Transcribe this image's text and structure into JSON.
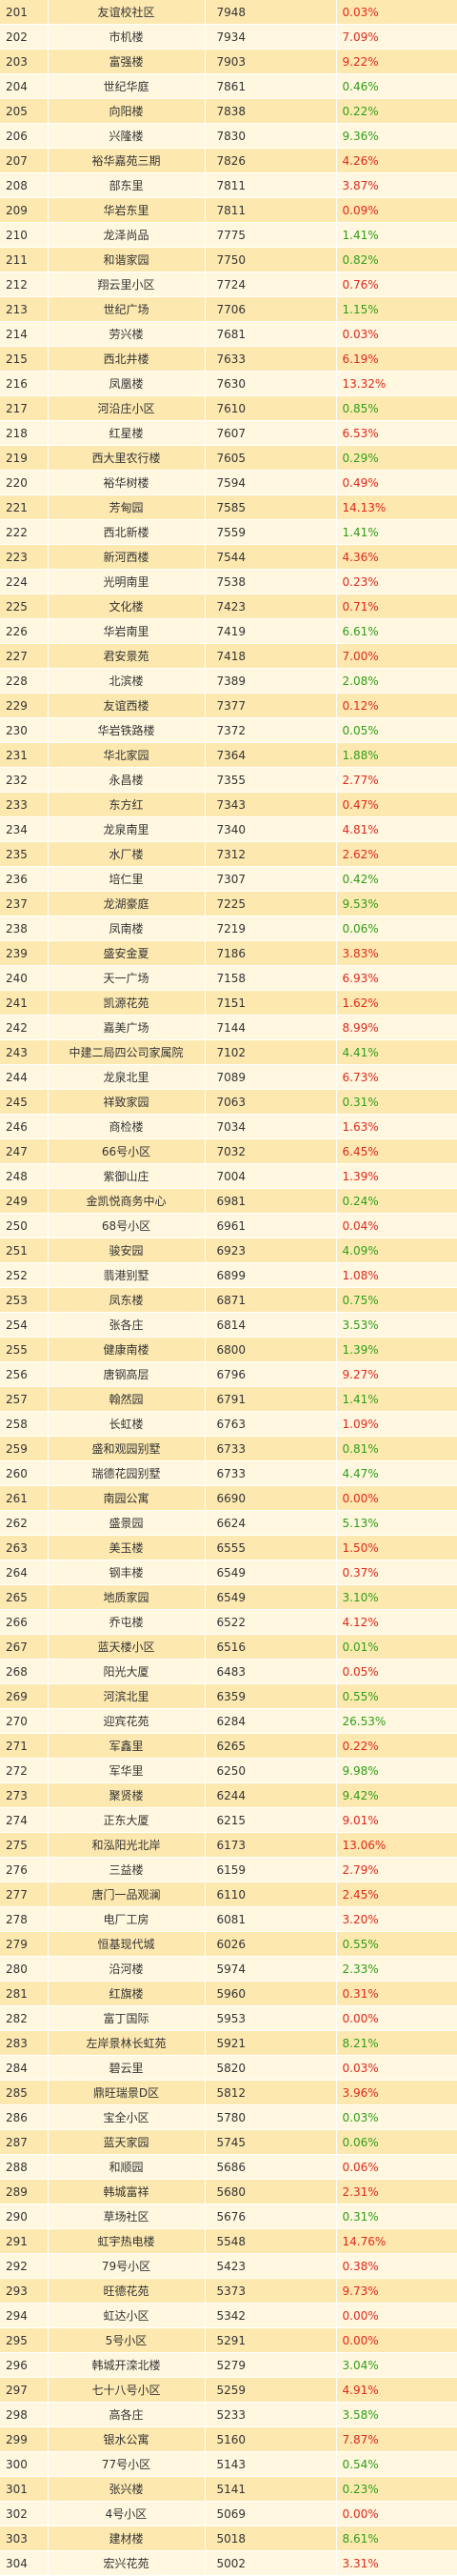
{
  "colors": {
    "up": "#e0281c",
    "flat": "#2e9e1a",
    "row_odd": "#fde9b0",
    "row_even": "#fff7df"
  },
  "rows": [
    {
      "rank": "201",
      "name": "友谊校社区",
      "value": "7948",
      "pct": "0.03%",
      "color": "red"
    },
    {
      "rank": "202",
      "name": "市机楼",
      "value": "7934",
      "pct": "7.09%",
      "color": "red"
    },
    {
      "rank": "203",
      "name": "富强楼",
      "value": "7903",
      "pct": "9.22%",
      "color": "red"
    },
    {
      "rank": "204",
      "name": "世纪华庭",
      "value": "7861",
      "pct": "0.46%",
      "color": "green"
    },
    {
      "rank": "205",
      "name": "向阳楼",
      "value": "7838",
      "pct": "0.22%",
      "color": "green"
    },
    {
      "rank": "206",
      "name": "兴隆楼",
      "value": "7830",
      "pct": "9.36%",
      "color": "green"
    },
    {
      "rank": "207",
      "name": "裕华嘉苑三期",
      "value": "7826",
      "pct": "4.26%",
      "color": "red"
    },
    {
      "rank": "208",
      "name": "部东里",
      "value": "7811",
      "pct": "3.87%",
      "color": "red"
    },
    {
      "rank": "209",
      "name": "华岩东里",
      "value": "7811",
      "pct": "0.09%",
      "color": "red"
    },
    {
      "rank": "210",
      "name": "龙泽尚品",
      "value": "7775",
      "pct": "1.41%",
      "color": "green"
    },
    {
      "rank": "211",
      "name": "和谐家园",
      "value": "7750",
      "pct": "0.82%",
      "color": "green"
    },
    {
      "rank": "212",
      "name": "翔云里小区",
      "value": "7724",
      "pct": "0.76%",
      "color": "red"
    },
    {
      "rank": "213",
      "name": "世纪广场",
      "value": "7706",
      "pct": "1.15%",
      "color": "green"
    },
    {
      "rank": "214",
      "name": "劳兴楼",
      "value": "7681",
      "pct": "0.03%",
      "color": "red"
    },
    {
      "rank": "215",
      "name": "西北井楼",
      "value": "7633",
      "pct": "6.19%",
      "color": "red"
    },
    {
      "rank": "216",
      "name": "凤凰楼",
      "value": "7630",
      "pct": "13.32%",
      "color": "red"
    },
    {
      "rank": "217",
      "name": "河沿庄小区",
      "value": "7610",
      "pct": "0.85%",
      "color": "green"
    },
    {
      "rank": "218",
      "name": "红星楼",
      "value": "7607",
      "pct": "6.53%",
      "color": "red"
    },
    {
      "rank": "219",
      "name": "西大里农行楼",
      "value": "7605",
      "pct": "0.29%",
      "color": "green"
    },
    {
      "rank": "220",
      "name": "裕华树楼",
      "value": "7594",
      "pct": "0.49%",
      "color": "red"
    },
    {
      "rank": "221",
      "name": "芳甸园",
      "value": "7585",
      "pct": "14.13%",
      "color": "red"
    },
    {
      "rank": "222",
      "name": "西北新楼",
      "value": "7559",
      "pct": "1.41%",
      "color": "green"
    },
    {
      "rank": "223",
      "name": "新河西楼",
      "value": "7544",
      "pct": "4.36%",
      "color": "red"
    },
    {
      "rank": "224",
      "name": "光明南里",
      "value": "7538",
      "pct": "0.23%",
      "color": "red"
    },
    {
      "rank": "225",
      "name": "文化楼",
      "value": "7423",
      "pct": "0.71%",
      "color": "red"
    },
    {
      "rank": "226",
      "name": "华岩南里",
      "value": "7419",
      "pct": "6.61%",
      "color": "green"
    },
    {
      "rank": "227",
      "name": "君安景苑",
      "value": "7418",
      "pct": "7.00%",
      "color": "red"
    },
    {
      "rank": "228",
      "name": "北滨楼",
      "value": "7389",
      "pct": "2.08%",
      "color": "green"
    },
    {
      "rank": "229",
      "name": "友谊西楼",
      "value": "7377",
      "pct": "0.12%",
      "color": "red"
    },
    {
      "rank": "230",
      "name": "华岩铁路楼",
      "value": "7372",
      "pct": "0.05%",
      "color": "green"
    },
    {
      "rank": "231",
      "name": "华北家园",
      "value": "7364",
      "pct": "1.88%",
      "color": "green"
    },
    {
      "rank": "232",
      "name": "永昌楼",
      "value": "7355",
      "pct": "2.77%",
      "color": "red"
    },
    {
      "rank": "233",
      "name": "东方红",
      "value": "7343",
      "pct": "0.47%",
      "color": "red"
    },
    {
      "rank": "234",
      "name": "龙泉南里",
      "value": "7340",
      "pct": "4.81%",
      "color": "red"
    },
    {
      "rank": "235",
      "name": "水厂楼",
      "value": "7312",
      "pct": "2.62%",
      "color": "red"
    },
    {
      "rank": "236",
      "name": "培仁里",
      "value": "7307",
      "pct": "0.42%",
      "color": "green"
    },
    {
      "rank": "237",
      "name": "龙湖豪庭",
      "value": "7225",
      "pct": "9.53%",
      "color": "green"
    },
    {
      "rank": "238",
      "name": "凤南楼",
      "value": "7219",
      "pct": "0.06%",
      "color": "green"
    },
    {
      "rank": "239",
      "name": "盛安金夏",
      "value": "7186",
      "pct": "3.83%",
      "color": "red"
    },
    {
      "rank": "240",
      "name": "天一广场",
      "value": "7158",
      "pct": "6.93%",
      "color": "red"
    },
    {
      "rank": "241",
      "name": "凯源花苑",
      "value": "7151",
      "pct": "1.62%",
      "color": "red"
    },
    {
      "rank": "242",
      "name": "嘉美广场",
      "value": "7144",
      "pct": "8.99%",
      "color": "red"
    },
    {
      "rank": "243",
      "name": "中建二局四公司家属院",
      "value": "7102",
      "pct": "4.41%",
      "color": "green"
    },
    {
      "rank": "244",
      "name": "龙泉北里",
      "value": "7089",
      "pct": "6.73%",
      "color": "red"
    },
    {
      "rank": "245",
      "name": "祥致家园",
      "value": "7063",
      "pct": "0.31%",
      "color": "green"
    },
    {
      "rank": "246",
      "name": "商检楼",
      "value": "7034",
      "pct": "1.63%",
      "color": "red"
    },
    {
      "rank": "247",
      "name": "66号小区",
      "value": "7032",
      "pct": "6.45%",
      "color": "red"
    },
    {
      "rank": "248",
      "name": "紫御山庄",
      "value": "7004",
      "pct": "1.39%",
      "color": "red"
    },
    {
      "rank": "249",
      "name": "金凯悦商务中心",
      "value": "6981",
      "pct": "0.24%",
      "color": "green"
    },
    {
      "rank": "250",
      "name": "68号小区",
      "value": "6961",
      "pct": "0.04%",
      "color": "red"
    },
    {
      "rank": "251",
      "name": "骏安园",
      "value": "6923",
      "pct": "4.09%",
      "color": "green"
    },
    {
      "rank": "252",
      "name": "翡港别墅",
      "value": "6899",
      "pct": "1.08%",
      "color": "red"
    },
    {
      "rank": "253",
      "name": "凤东楼",
      "value": "6871",
      "pct": "0.75%",
      "color": "green"
    },
    {
      "rank": "254",
      "name": "张各庄",
      "value": "6814",
      "pct": "3.53%",
      "color": "green"
    },
    {
      "rank": "255",
      "name": "健康南楼",
      "value": "6800",
      "pct": "1.39%",
      "color": "green"
    },
    {
      "rank": "256",
      "name": "唐钢高层",
      "value": "6796",
      "pct": "9.27%",
      "color": "red"
    },
    {
      "rank": "257",
      "name": "翰然园",
      "value": "6791",
      "pct": "1.41%",
      "color": "green"
    },
    {
      "rank": "258",
      "name": "长虹楼",
      "value": "6763",
      "pct": "1.09%",
      "color": "red"
    },
    {
      "rank": "259",
      "name": "盛和观园别墅",
      "value": "6733",
      "pct": "0.81%",
      "color": "green"
    },
    {
      "rank": "260",
      "name": "瑞德花园别墅",
      "value": "6733",
      "pct": "4.47%",
      "color": "green"
    },
    {
      "rank": "261",
      "name": "南园公寓",
      "value": "6690",
      "pct": "0.00%",
      "color": "red"
    },
    {
      "rank": "262",
      "name": "盛景园",
      "value": "6624",
      "pct": "5.13%",
      "color": "green"
    },
    {
      "rank": "263",
      "name": "美玉楼",
      "value": "6555",
      "pct": "1.50%",
      "color": "red"
    },
    {
      "rank": "264",
      "name": "钢丰楼",
      "value": "6549",
      "pct": "0.37%",
      "color": "red"
    },
    {
      "rank": "265",
      "name": "地质家园",
      "value": "6549",
      "pct": "3.10%",
      "color": "green"
    },
    {
      "rank": "266",
      "name": "乔屯楼",
      "value": "6522",
      "pct": "4.12%",
      "color": "red"
    },
    {
      "rank": "267",
      "name": "蓝天楼小区",
      "value": "6516",
      "pct": "0.01%",
      "color": "green"
    },
    {
      "rank": "268",
      "name": "阳光大厦",
      "value": "6483",
      "pct": "0.05%",
      "color": "red"
    },
    {
      "rank": "269",
      "name": "河滨北里",
      "value": "6359",
      "pct": "0.55%",
      "color": "green"
    },
    {
      "rank": "270",
      "name": "迎宾花苑",
      "value": "6284",
      "pct": "26.53%",
      "color": "green"
    },
    {
      "rank": "271",
      "name": "军鑫里",
      "value": "6265",
      "pct": "0.22%",
      "color": "red"
    },
    {
      "rank": "272",
      "name": "军华里",
      "value": "6250",
      "pct": "9.98%",
      "color": "green"
    },
    {
      "rank": "273",
      "name": "聚贤楼",
      "value": "6244",
      "pct": "9.42%",
      "color": "green"
    },
    {
      "rank": "274",
      "name": "正东大厦",
      "value": "6215",
      "pct": "9.01%",
      "color": "red"
    },
    {
      "rank": "275",
      "name": "和泓阳光北岸",
      "value": "6173",
      "pct": "13.06%",
      "color": "red"
    },
    {
      "rank": "276",
      "name": "三益楼",
      "value": "6159",
      "pct": "2.79%",
      "color": "red"
    },
    {
      "rank": "277",
      "name": "唐门一品观澜",
      "value": "6110",
      "pct": "2.45%",
      "color": "red"
    },
    {
      "rank": "278",
      "name": "电厂工房",
      "value": "6081",
      "pct": "3.20%",
      "color": "red"
    },
    {
      "rank": "279",
      "name": "恒基现代城",
      "value": "6026",
      "pct": "0.55%",
      "color": "green"
    },
    {
      "rank": "280",
      "name": "沿河楼",
      "value": "5974",
      "pct": "2.33%",
      "color": "green"
    },
    {
      "rank": "281",
      "name": "红旗楼",
      "value": "5960",
      "pct": "0.31%",
      "color": "red"
    },
    {
      "rank": "282",
      "name": "富丁国际",
      "value": "5953",
      "pct": "0.00%",
      "color": "red"
    },
    {
      "rank": "283",
      "name": "左岸景林长虹苑",
      "value": "5921",
      "pct": "8.21%",
      "color": "green"
    },
    {
      "rank": "284",
      "name": "碧云里",
      "value": "5820",
      "pct": "0.03%",
      "color": "red"
    },
    {
      "rank": "285",
      "name": "鼎旺瑞景D区",
      "value": "5812",
      "pct": "3.96%",
      "color": "red"
    },
    {
      "rank": "286",
      "name": "宝全小区",
      "value": "5780",
      "pct": "0.03%",
      "color": "green"
    },
    {
      "rank": "287",
      "name": "蓝天家园",
      "value": "5745",
      "pct": "0.06%",
      "color": "green"
    },
    {
      "rank": "288",
      "name": "和顺园",
      "value": "5686",
      "pct": "0.06%",
      "color": "red"
    },
    {
      "rank": "289",
      "name": "韩城富祥",
      "value": "5680",
      "pct": "2.31%",
      "color": "red"
    },
    {
      "rank": "290",
      "name": "草场社区",
      "value": "5676",
      "pct": "0.31%",
      "color": "green"
    },
    {
      "rank": "291",
      "name": "虹宇热电楼",
      "value": "5548",
      "pct": "14.76%",
      "color": "red"
    },
    {
      "rank": "292",
      "name": "79号小区",
      "value": "5423",
      "pct": "0.38%",
      "color": "red"
    },
    {
      "rank": "293",
      "name": "旺德花苑",
      "value": "5373",
      "pct": "9.73%",
      "color": "red"
    },
    {
      "rank": "294",
      "name": "虹达小区",
      "value": "5342",
      "pct": "0.00%",
      "color": "red"
    },
    {
      "rank": "295",
      "name": "5号小区",
      "value": "5291",
      "pct": "0.00%",
      "color": "red"
    },
    {
      "rank": "296",
      "name": "韩城开滦北楼",
      "value": "5279",
      "pct": "3.04%",
      "color": "green"
    },
    {
      "rank": "297",
      "name": "七十八号小区",
      "value": "5259",
      "pct": "4.91%",
      "color": "red"
    },
    {
      "rank": "298",
      "name": "高各庄",
      "value": "5233",
      "pct": "3.58%",
      "color": "green"
    },
    {
      "rank": "299",
      "name": "银水公寓",
      "value": "5160",
      "pct": "7.87%",
      "color": "red"
    },
    {
      "rank": "300",
      "name": "77号小区",
      "value": "5143",
      "pct": "0.54%",
      "color": "green"
    },
    {
      "rank": "301",
      "name": "张兴楼",
      "value": "5141",
      "pct": "0.23%",
      "color": "green"
    },
    {
      "rank": "302",
      "name": "4号小区",
      "value": "5069",
      "pct": "0.00%",
      "color": "red"
    },
    {
      "rank": "303",
      "name": "建材楼",
      "value": "5018",
      "pct": "8.61%",
      "color": "green"
    },
    {
      "rank": "304",
      "name": "宏兴花苑",
      "value": "5002",
      "pct": "3.31%",
      "color": "red"
    }
  ]
}
